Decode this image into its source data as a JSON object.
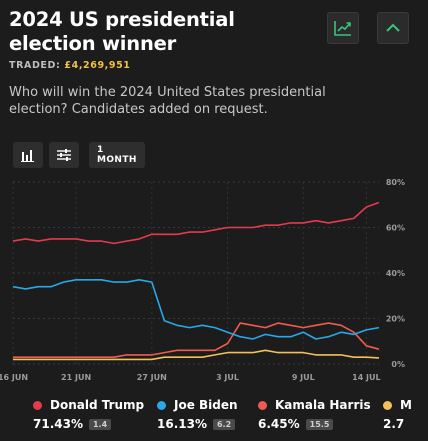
{
  "header": {
    "title": "2024 US presidential election winner",
    "traded_label": "TRADED:",
    "traded_value": "£4,269,951",
    "description": "Who will win the 2024 United States presidential election? Candidates added on request."
  },
  "icons": {
    "chart_toggle": "trend-chart-icon",
    "collapse": "chevron-up-icon",
    "bar_chart": "bar-chart-icon",
    "filters": "sliders-icon"
  },
  "toolbar": {
    "range_label": "1 MONTH"
  },
  "colors": {
    "background": "#1c1c1c",
    "accent_green": "#39c47a",
    "trump": "#e23b4e",
    "biden": "#29a8e8",
    "harris": "#ee5c50",
    "fourth": "#f2c15e"
  },
  "chart_data": {
    "type": "line",
    "title": "",
    "xlabel": "",
    "ylabel": "",
    "ylim": [
      0,
      80
    ],
    "yticks": [
      "0%",
      "20%",
      "40%",
      "60%",
      "80%"
    ],
    "xticks": [
      "16 JUN",
      "21 JUN",
      "27 JUN",
      "3 JUL",
      "9 JUL",
      "14 JUL"
    ],
    "xtick_days": [
      0,
      5,
      11,
      17,
      23,
      28
    ],
    "x_days": [
      0,
      1,
      2,
      3,
      4,
      5,
      6,
      7,
      8,
      9,
      10,
      11,
      12,
      13,
      14,
      15,
      16,
      17,
      18,
      19,
      20,
      21,
      22,
      23,
      24,
      25,
      26,
      27,
      28,
      29
    ],
    "grid": true,
    "series": [
      {
        "name": "Donald Trump",
        "color": "#e23b4e",
        "values": [
          54,
          55,
          54,
          55,
          55,
          55,
          54,
          54,
          53,
          54,
          55,
          57,
          57,
          57,
          58,
          58,
          59,
          60,
          60,
          60,
          61,
          61,
          62,
          62,
          63,
          62,
          63,
          64,
          69,
          71
        ]
      },
      {
        "name": "Joe Biden",
        "color": "#29a8e8",
        "values": [
          34,
          33,
          34,
          34,
          36,
          37,
          37,
          37,
          36,
          36,
          37,
          36,
          19,
          17,
          16,
          17,
          16,
          14,
          12,
          11,
          13,
          12,
          12,
          14,
          11,
          12,
          14,
          13,
          15,
          16
        ]
      },
      {
        "name": "Kamala Harris",
        "color": "#ee5c50",
        "values": [
          3,
          3,
          3,
          3,
          3,
          3,
          3,
          3,
          3,
          4,
          4,
          4,
          5,
          6,
          6,
          6,
          6,
          9,
          18,
          17,
          16,
          18,
          17,
          16,
          17,
          18,
          17,
          14,
          8,
          6.5
        ]
      },
      {
        "name": "M",
        "color": "#f2c15e",
        "values": [
          2,
          2,
          2,
          2,
          2,
          2,
          2,
          2,
          2,
          2,
          2,
          2,
          3,
          3,
          3,
          3,
          4,
          5,
          5,
          5,
          6,
          5,
          5,
          5,
          4,
          4,
          4,
          3,
          3,
          2.7
        ]
      }
    ]
  },
  "legend": [
    {
      "name": "Donald Trump",
      "value": "71.43%",
      "badge": "1.4",
      "color": "#e23b4e"
    },
    {
      "name": "Joe Biden",
      "value": "16.13%",
      "badge": "6.2",
      "color": "#29a8e8"
    },
    {
      "name": "Kamala Harris",
      "value": "6.45%",
      "badge": "15.5",
      "color": "#ee5c50"
    },
    {
      "name": "M",
      "value": "2.7",
      "badge": "",
      "color": "#f2c15e"
    }
  ]
}
